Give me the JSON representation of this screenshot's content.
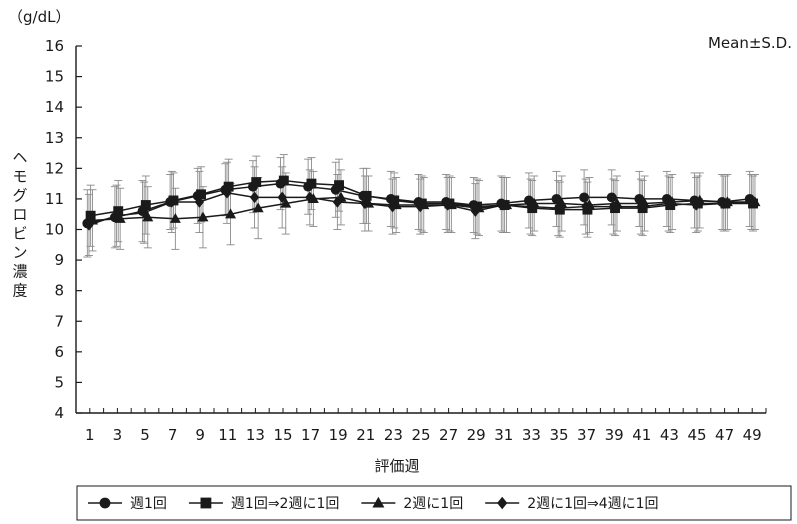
{
  "chart_data": {
    "type": "line",
    "unit_label": "（g/dL）",
    "ylabel": "ヘモグロビン濃度",
    "xlabel": "評価週",
    "annotation": "Mean±S.D.",
    "ylim": [
      4,
      16
    ],
    "y_ticks": [
      4,
      5,
      6,
      7,
      8,
      9,
      10,
      11,
      12,
      13,
      14,
      15,
      16
    ],
    "x_ticks": [
      1,
      3,
      5,
      7,
      9,
      11,
      13,
      15,
      17,
      19,
      21,
      23,
      25,
      27,
      29,
      31,
      33,
      35,
      37,
      39,
      41,
      43,
      45,
      47,
      49
    ],
    "x": [
      1,
      3,
      5,
      7,
      9,
      11,
      13,
      15,
      17,
      19,
      21,
      23,
      25,
      27,
      29,
      31,
      33,
      35,
      37,
      39,
      41,
      43,
      45,
      47,
      49
    ],
    "legend_position": "bottom",
    "series": [
      {
        "name": "週1回",
        "marker": "circle",
        "values": [
          10.2,
          10.4,
          10.6,
          10.9,
          11.1,
          11.3,
          11.4,
          11.5,
          11.4,
          11.3,
          11.1,
          11.0,
          10.9,
          10.9,
          10.8,
          10.85,
          10.95,
          11.0,
          11.05,
          11.05,
          11.0,
          11.0,
          10.95,
          10.9,
          11.0
        ],
        "sd": [
          1.1,
          1.0,
          1.0,
          0.9,
          0.9,
          0.85,
          0.85,
          0.85,
          0.9,
          0.9,
          0.9,
          0.9,
          0.9,
          0.9,
          0.9,
          0.9,
          0.9,
          0.9,
          0.9,
          0.9,
          0.9,
          0.9,
          0.9,
          0.9,
          0.9
        ]
      },
      {
        "name": "週1回⇒2週に1回",
        "marker": "square",
        "values": [
          10.45,
          10.6,
          10.8,
          10.95,
          11.15,
          11.4,
          11.55,
          11.6,
          11.5,
          11.45,
          11.1,
          10.95,
          10.85,
          10.85,
          10.75,
          10.8,
          10.7,
          10.65,
          10.65,
          10.7,
          10.7,
          10.8,
          10.85,
          10.85,
          10.85
        ],
        "sd": [
          1.0,
          1.0,
          0.95,
          0.9,
          0.9,
          0.9,
          0.85,
          0.85,
          0.85,
          0.85,
          0.9,
          0.9,
          0.9,
          0.9,
          0.9,
          0.9,
          0.9,
          0.9,
          0.9,
          0.9,
          0.9,
          0.9,
          0.9,
          0.9,
          0.9
        ]
      },
      {
        "name": "2週に1回",
        "marker": "triangle",
        "values": [
          10.3,
          10.35,
          10.4,
          10.35,
          10.4,
          10.5,
          10.7,
          10.85,
          11.0,
          11.05,
          10.85,
          10.8,
          10.8,
          10.8,
          10.7,
          10.8,
          10.85,
          10.85,
          10.8,
          10.85,
          10.85,
          10.9,
          10.95,
          10.9,
          10.9
        ],
        "sd": [
          1.0,
          1.0,
          1.0,
          1.0,
          1.0,
          1.0,
          1.0,
          1.0,
          0.9,
          0.9,
          0.9,
          0.9,
          0.9,
          0.9,
          0.9,
          0.9,
          0.9,
          0.9,
          0.9,
          0.9,
          0.9,
          0.9,
          0.9,
          0.9,
          0.9
        ]
      },
      {
        "name": "2週に1回⇒4週に1回",
        "marker": "diamond",
        "values": [
          10.15,
          10.45,
          10.55,
          10.9,
          10.9,
          11.2,
          11.05,
          11.05,
          11.05,
          10.9,
          10.85,
          10.75,
          10.75,
          10.8,
          10.6,
          10.8,
          10.75,
          10.7,
          10.75,
          10.75,
          10.75,
          10.85,
          10.8,
          10.85,
          10.9
        ],
        "sd": [
          1.0,
          1.0,
          1.0,
          1.0,
          1.0,
          1.0,
          1.0,
          1.0,
          0.9,
          0.9,
          0.9,
          0.9,
          0.9,
          0.9,
          0.9,
          0.9,
          0.9,
          0.9,
          0.9,
          0.9,
          0.9,
          0.9,
          0.9,
          0.9,
          0.9
        ]
      }
    ]
  },
  "colors": {
    "ink": "#1a1a1a",
    "errorbar": "#8a8a8a",
    "background": "#ffffff"
  }
}
